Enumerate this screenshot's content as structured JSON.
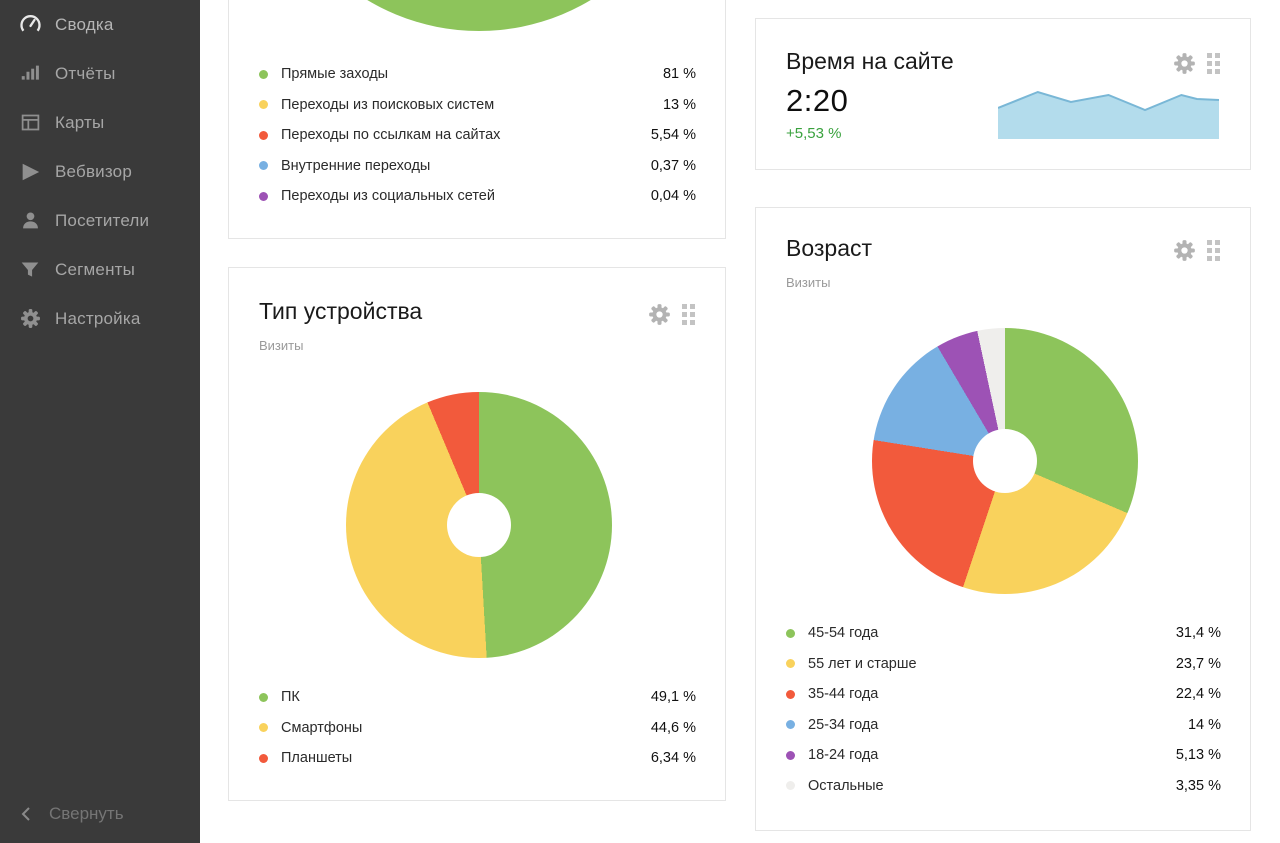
{
  "sidebar": {
    "bg_color": "#3a3a3a",
    "items": [
      {
        "label": "Сводка",
        "icon": "speedometer-icon",
        "active": true
      },
      {
        "label": "Отчёты",
        "icon": "bar-chart-icon",
        "active": false
      },
      {
        "label": "Карты",
        "icon": "layout-icon",
        "active": false
      },
      {
        "label": "Вебвизор",
        "icon": "play-icon",
        "active": false
      },
      {
        "label": "Посетители",
        "icon": "person-icon",
        "active": false
      },
      {
        "label": "Сегменты",
        "icon": "funnel-icon",
        "active": false
      },
      {
        "label": "Настройка",
        "icon": "gear-icon",
        "active": false
      }
    ],
    "collapse_label": "Свернуть"
  },
  "palette": {
    "green": "#8dc45b",
    "yellow": "#f9d25c",
    "red": "#f25a3c",
    "blue": "#78b0e2",
    "purple": "#9d52b5",
    "gray": "#efeeec",
    "spark_fill": "#b3dcec",
    "spark_stroke": "#79b7d6",
    "positive_change": "#3aa23e"
  },
  "widgets": {
    "traffic_sources": {
      "legend": [
        {
          "label": "Прямые заходы",
          "value_display": "81 %",
          "color": "#8dc45b"
        },
        {
          "label": "Переходы из поисковых систем",
          "value_display": "13 %",
          "color": "#f9d25c"
        },
        {
          "label": "Переходы по ссылкам на сайтах",
          "value_display": "5,54 %",
          "color": "#f25a3c"
        },
        {
          "label": "Внутренние переходы",
          "value_display": "0,37 %",
          "color": "#78b0e2"
        },
        {
          "label": "Переходы из социальных сетей",
          "value_display": "0,04 %",
          "color": "#9d52b5"
        }
      ]
    },
    "device_type": {
      "title": "Тип устройства",
      "subtitle": "Визиты",
      "legend": [
        {
          "label": "ПК",
          "value_display": "49,1 %",
          "color": "#8dc45b"
        },
        {
          "label": "Смартфоны",
          "value_display": "44,6 %",
          "color": "#f9d25c"
        },
        {
          "label": "Планшеты",
          "value_display": "6,34 %",
          "color": "#f25a3c"
        }
      ]
    },
    "time_on_site": {
      "title": "Время на сайте",
      "value": "2:20",
      "change": "+5,53 %"
    },
    "age": {
      "title": "Возраст",
      "subtitle": "Визиты",
      "legend": [
        {
          "label": "45-54 года",
          "value_display": "31,4 %",
          "color": "#8dc45b"
        },
        {
          "label": "55 лет и старше",
          "value_display": "23,7 %",
          "color": "#f9d25c"
        },
        {
          "label": "35-44 года",
          "value_display": "22,4 %",
          "color": "#f25a3c"
        },
        {
          "label": "25-34 года",
          "value_display": "14 %",
          "color": "#78b0e2"
        },
        {
          "label": "18-24 года",
          "value_display": "5,13 %",
          "color": "#9d52b5"
        },
        {
          "label": "Остальные",
          "value_display": "3,35 %",
          "color": "#efeeec"
        }
      ]
    }
  },
  "chart_data": [
    {
      "type": "pie",
      "name": "traffic-sources",
      "labels": [
        "Прямые заходы",
        "Переходы из поисковых систем",
        "Переходы по ссылкам на сайтах",
        "Внутренние переходы",
        "Переходы из социальных сетей"
      ],
      "values": [
        81,
        13,
        5.54,
        0.37,
        0.04
      ],
      "colors": [
        "#8dc45b",
        "#f9d25c",
        "#f25a3c",
        "#78b0e2",
        "#9d52b5"
      ],
      "donut": true
    },
    {
      "type": "pie",
      "name": "device-type",
      "title": "Тип устройства",
      "subtitle": "Визиты",
      "labels": [
        "ПК",
        "Смартфоны",
        "Планшеты"
      ],
      "values": [
        49.1,
        44.6,
        6.34
      ],
      "colors": [
        "#8dc45b",
        "#f9d25c",
        "#f25a3c"
      ],
      "donut": true
    },
    {
      "type": "area",
      "name": "time-on-site-trend",
      "title": "Время на сайте",
      "value": "2:20",
      "change_pct": 5.53,
      "points": [
        [
          0,
          0.38
        ],
        [
          0.18,
          0.06
        ],
        [
          0.33,
          0.26
        ],
        [
          0.5,
          0.12
        ],
        [
          0.665,
          0.42
        ],
        [
          0.83,
          0.12
        ],
        [
          0.9,
          0.2
        ],
        [
          1,
          0.22
        ]
      ],
      "fill": "#b3dcec",
      "stroke": "#79b7d6"
    },
    {
      "type": "pie",
      "name": "age",
      "title": "Возраст",
      "subtitle": "Визиты",
      "labels": [
        "45-54 года",
        "55 лет и старше",
        "35-44 года",
        "25-34 года",
        "18-24 года",
        "Остальные"
      ],
      "values": [
        31.4,
        23.7,
        22.4,
        14,
        5.13,
        3.35
      ],
      "colors": [
        "#8dc45b",
        "#f9d25c",
        "#f25a3c",
        "#78b0e2",
        "#9d52b5",
        "#efeeec"
      ],
      "donut": true
    }
  ]
}
